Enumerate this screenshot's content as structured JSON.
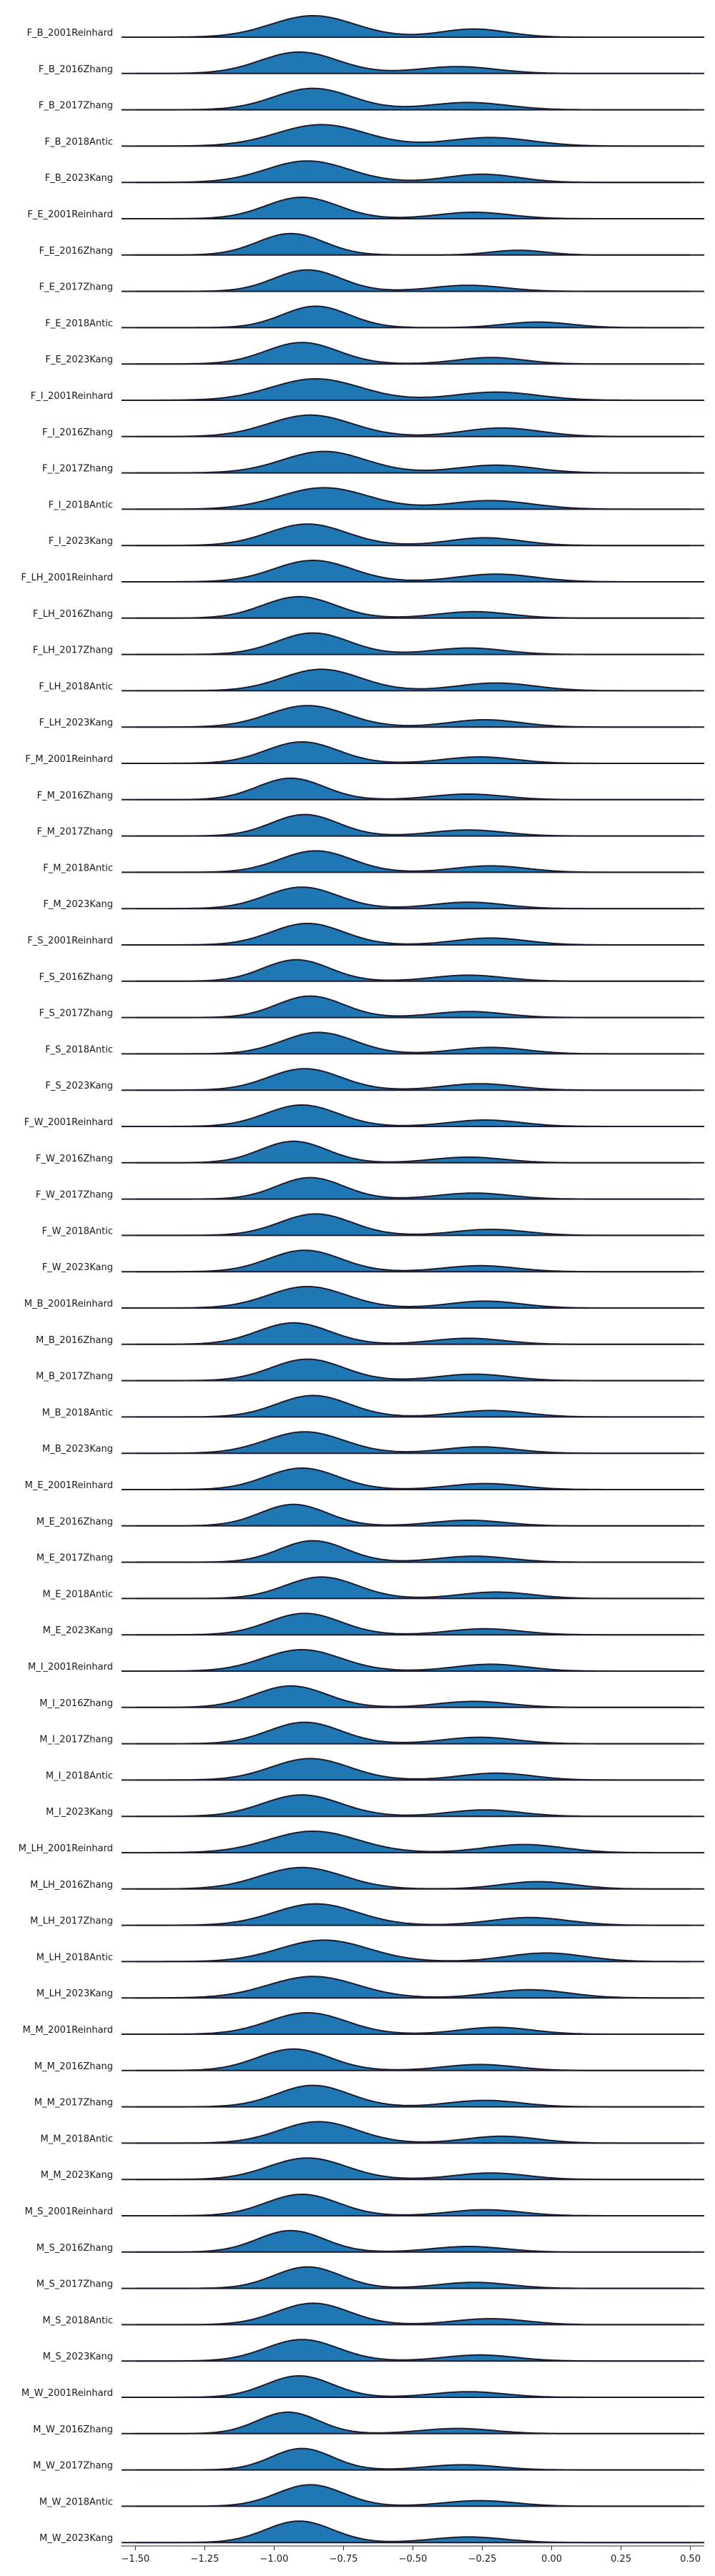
{
  "chart_data": {
    "type": "area",
    "subtype": "ridgeline",
    "title": "",
    "xlabel": "",
    "ylabel": "",
    "xlim": [
      -1.55,
      0.55
    ],
    "xticks": [
      -1.5,
      -1.25,
      -1.0,
      -0.75,
      -0.5,
      -0.25,
      0.0,
      0.25,
      0.5
    ],
    "xtick_labels": [
      "−1.50",
      "−1.25",
      "−1.00",
      "−0.75",
      "−0.50",
      "−0.25",
      "0.00",
      "0.25",
      "0.50"
    ],
    "grid": false,
    "legend": "none",
    "fill_color": "#1f77b4",
    "line_color": "#1c1c2e",
    "density_x_range": [
      -1.5,
      0.5
    ],
    "series": [
      {
        "name": "F_B_2001Reinhard",
        "peaks": [
          [
            -0.86,
            0.15,
            1.0
          ],
          [
            -0.28,
            0.12,
            0.38
          ]
        ]
      },
      {
        "name": "F_B_2016Zhang",
        "peaks": [
          [
            -0.91,
            0.14,
            1.0
          ],
          [
            -0.34,
            0.14,
            0.32
          ]
        ]
      },
      {
        "name": "F_B_2017Zhang",
        "peaks": [
          [
            -0.86,
            0.14,
            1.0
          ],
          [
            -0.3,
            0.14,
            0.34
          ]
        ]
      },
      {
        "name": "F_B_2018Antic",
        "peaks": [
          [
            -0.83,
            0.16,
            1.0
          ],
          [
            -0.22,
            0.15,
            0.4
          ]
        ]
      },
      {
        "name": "F_B_2023Kang",
        "peaks": [
          [
            -0.88,
            0.15,
            1.0
          ],
          [
            -0.25,
            0.13,
            0.38
          ]
        ]
      },
      {
        "name": "F_E_2001Reinhard",
        "peaks": [
          [
            -0.9,
            0.13,
            1.0
          ],
          [
            -0.28,
            0.13,
            0.3
          ]
        ]
      },
      {
        "name": "F_E_2016Zhang",
        "peaks": [
          [
            -0.94,
            0.12,
            1.0
          ],
          [
            -0.12,
            0.1,
            0.22
          ]
        ]
      },
      {
        "name": "F_E_2017Zhang",
        "peaks": [
          [
            -0.88,
            0.12,
            1.0
          ],
          [
            -0.3,
            0.13,
            0.28
          ]
        ]
      },
      {
        "name": "F_E_2018Antic",
        "peaks": [
          [
            -0.85,
            0.12,
            1.0
          ],
          [
            -0.05,
            0.12,
            0.26
          ]
        ]
      },
      {
        "name": "F_E_2023Kang",
        "peaks": [
          [
            -0.9,
            0.13,
            1.0
          ],
          [
            -0.22,
            0.12,
            0.3
          ]
        ]
      },
      {
        "name": "F_I_2001Reinhard",
        "peaks": [
          [
            -0.85,
            0.16,
            1.0
          ],
          [
            -0.2,
            0.15,
            0.38
          ]
        ]
      },
      {
        "name": "F_I_2016Zhang",
        "peaks": [
          [
            -0.87,
            0.15,
            1.0
          ],
          [
            -0.18,
            0.14,
            0.4
          ]
        ]
      },
      {
        "name": "F_I_2017Zhang",
        "peaks": [
          [
            -0.82,
            0.15,
            1.0
          ],
          [
            -0.2,
            0.14,
            0.36
          ]
        ]
      },
      {
        "name": "F_I_2018Antic",
        "peaks": [
          [
            -0.82,
            0.16,
            1.0
          ],
          [
            -0.22,
            0.15,
            0.4
          ]
        ]
      },
      {
        "name": "F_I_2023Kang",
        "peaks": [
          [
            -0.88,
            0.14,
            1.0
          ],
          [
            -0.24,
            0.13,
            0.36
          ]
        ]
      },
      {
        "name": "F_LH_2001Reinhard",
        "peaks": [
          [
            -0.86,
            0.14,
            1.0
          ],
          [
            -0.2,
            0.14,
            0.36
          ]
        ]
      },
      {
        "name": "F_LH_2016Zhang",
        "peaks": [
          [
            -0.91,
            0.13,
            1.0
          ],
          [
            -0.28,
            0.13,
            0.3
          ]
        ]
      },
      {
        "name": "F_LH_2017Zhang",
        "peaks": [
          [
            -0.86,
            0.13,
            1.0
          ],
          [
            -0.3,
            0.13,
            0.3
          ]
        ]
      },
      {
        "name": "F_LH_2018Antic",
        "peaks": [
          [
            -0.83,
            0.14,
            1.0
          ],
          [
            -0.2,
            0.14,
            0.36
          ]
        ]
      },
      {
        "name": "F_LH_2023Kang",
        "peaks": [
          [
            -0.88,
            0.14,
            1.0
          ],
          [
            -0.24,
            0.13,
            0.34
          ]
        ]
      },
      {
        "name": "F_M_2001Reinhard",
        "peaks": [
          [
            -0.9,
            0.13,
            1.0
          ],
          [
            -0.26,
            0.13,
            0.3
          ]
        ]
      },
      {
        "name": "F_M_2016Zhang",
        "peaks": [
          [
            -0.94,
            0.12,
            1.0
          ],
          [
            -0.3,
            0.13,
            0.26
          ]
        ]
      },
      {
        "name": "F_M_2017Zhang",
        "peaks": [
          [
            -0.89,
            0.12,
            1.0
          ],
          [
            -0.3,
            0.13,
            0.28
          ]
        ]
      },
      {
        "name": "F_M_2018Antic",
        "peaks": [
          [
            -0.85,
            0.13,
            1.0
          ],
          [
            -0.22,
            0.13,
            0.3
          ]
        ]
      },
      {
        "name": "F_M_2023Kang",
        "peaks": [
          [
            -0.9,
            0.13,
            1.0
          ],
          [
            -0.3,
            0.13,
            0.3
          ]
        ]
      },
      {
        "name": "F_S_2001Reinhard",
        "peaks": [
          [
            -0.88,
            0.13,
            1.0
          ],
          [
            -0.22,
            0.13,
            0.32
          ]
        ]
      },
      {
        "name": "F_S_2016Zhang",
        "peaks": [
          [
            -0.92,
            0.12,
            1.0
          ],
          [
            -0.3,
            0.13,
            0.28
          ]
        ]
      },
      {
        "name": "F_S_2017Zhang",
        "peaks": [
          [
            -0.87,
            0.12,
            1.0
          ],
          [
            -0.3,
            0.13,
            0.28
          ]
        ]
      },
      {
        "name": "F_S_2018Antic",
        "peaks": [
          [
            -0.84,
            0.13,
            1.0
          ],
          [
            -0.22,
            0.13,
            0.3
          ]
        ]
      },
      {
        "name": "F_S_2023Kang",
        "peaks": [
          [
            -0.89,
            0.13,
            1.0
          ],
          [
            -0.26,
            0.13,
            0.3
          ]
        ]
      },
      {
        "name": "F_W_2001Reinhard",
        "peaks": [
          [
            -0.9,
            0.13,
            1.0
          ],
          [
            -0.24,
            0.13,
            0.3
          ]
        ]
      },
      {
        "name": "F_W_2016Zhang",
        "peaks": [
          [
            -0.93,
            0.12,
            1.0
          ],
          [
            -0.3,
            0.13,
            0.26
          ]
        ]
      },
      {
        "name": "F_W_2017Zhang",
        "peaks": [
          [
            -0.87,
            0.12,
            1.0
          ],
          [
            -0.28,
            0.13,
            0.28
          ]
        ]
      },
      {
        "name": "F_W_2018Antic",
        "peaks": [
          [
            -0.85,
            0.13,
            1.0
          ],
          [
            -0.22,
            0.13,
            0.28
          ]
        ]
      },
      {
        "name": "F_W_2023Kang",
        "peaks": [
          [
            -0.89,
            0.13,
            1.0
          ],
          [
            -0.26,
            0.13,
            0.28
          ]
        ]
      },
      {
        "name": "M_B_2001Reinhard",
        "peaks": [
          [
            -0.88,
            0.14,
            1.0
          ],
          [
            -0.24,
            0.13,
            0.32
          ]
        ]
      },
      {
        "name": "M_B_2016Zhang",
        "peaks": [
          [
            -0.93,
            0.13,
            1.0
          ],
          [
            -0.3,
            0.13,
            0.28
          ]
        ]
      },
      {
        "name": "M_B_2017Zhang",
        "peaks": [
          [
            -0.88,
            0.13,
            1.0
          ],
          [
            -0.28,
            0.13,
            0.3
          ]
        ]
      },
      {
        "name": "M_B_2018Antic",
        "peaks": [
          [
            -0.86,
            0.13,
            1.0
          ],
          [
            -0.22,
            0.13,
            0.3
          ]
        ]
      },
      {
        "name": "M_B_2023Kang",
        "peaks": [
          [
            -0.89,
            0.14,
            1.0
          ],
          [
            -0.26,
            0.13,
            0.3
          ]
        ]
      },
      {
        "name": "M_E_2001Reinhard",
        "peaks": [
          [
            -0.9,
            0.13,
            1.0
          ],
          [
            -0.24,
            0.13,
            0.28
          ]
        ]
      },
      {
        "name": "M_E_2016Zhang",
        "peaks": [
          [
            -0.93,
            0.12,
            1.0
          ],
          [
            -0.3,
            0.13,
            0.26
          ]
        ]
      },
      {
        "name": "M_E_2017Zhang",
        "peaks": [
          [
            -0.86,
            0.12,
            1.0
          ],
          [
            -0.28,
            0.13,
            0.28
          ]
        ]
      },
      {
        "name": "M_E_2018Antic",
        "peaks": [
          [
            -0.83,
            0.13,
            1.0
          ],
          [
            -0.2,
            0.13,
            0.3
          ]
        ]
      },
      {
        "name": "M_E_2023Kang",
        "peaks": [
          [
            -0.89,
            0.13,
            1.0
          ],
          [
            -0.24,
            0.13,
            0.28
          ]
        ]
      },
      {
        "name": "M_I_2001Reinhard",
        "peaks": [
          [
            -0.9,
            0.14,
            1.0
          ],
          [
            -0.22,
            0.13,
            0.32
          ]
        ]
      },
      {
        "name": "M_I_2016Zhang",
        "peaks": [
          [
            -0.94,
            0.13,
            1.0
          ],
          [
            -0.28,
            0.13,
            0.28
          ]
        ]
      },
      {
        "name": "M_I_2017Zhang",
        "peaks": [
          [
            -0.89,
            0.13,
            1.0
          ],
          [
            -0.26,
            0.13,
            0.3
          ]
        ]
      },
      {
        "name": "M_I_2018Antic",
        "peaks": [
          [
            -0.87,
            0.14,
            1.0
          ],
          [
            -0.2,
            0.13,
            0.32
          ]
        ]
      },
      {
        "name": "M_I_2023Kang",
        "peaks": [
          [
            -0.9,
            0.14,
            1.0
          ],
          [
            -0.24,
            0.13,
            0.3
          ]
        ]
      },
      {
        "name": "M_LH_2001Reinhard",
        "peaks": [
          [
            -0.86,
            0.16,
            1.0
          ],
          [
            -0.1,
            0.14,
            0.38
          ]
        ]
      },
      {
        "name": "M_LH_2016Zhang",
        "peaks": [
          [
            -0.9,
            0.15,
            1.0
          ],
          [
            -0.05,
            0.13,
            0.34
          ]
        ]
      },
      {
        "name": "M_LH_2017Zhang",
        "peaks": [
          [
            -0.85,
            0.15,
            1.0
          ],
          [
            -0.08,
            0.14,
            0.36
          ]
        ]
      },
      {
        "name": "M_LH_2018Antic",
        "peaks": [
          [
            -0.82,
            0.16,
            1.0
          ],
          [
            -0.02,
            0.14,
            0.4
          ]
        ]
      },
      {
        "name": "M_LH_2023Kang",
        "peaks": [
          [
            -0.86,
            0.16,
            1.0
          ],
          [
            -0.08,
            0.14,
            0.38
          ]
        ]
      },
      {
        "name": "M_M_2001Reinhard",
        "peaks": [
          [
            -0.88,
            0.14,
            1.0
          ],
          [
            -0.2,
            0.13,
            0.32
          ]
        ]
      },
      {
        "name": "M_M_2016Zhang",
        "peaks": [
          [
            -0.93,
            0.13,
            1.0
          ],
          [
            -0.26,
            0.13,
            0.28
          ]
        ]
      },
      {
        "name": "M_M_2017Zhang",
        "peaks": [
          [
            -0.86,
            0.13,
            1.0
          ],
          [
            -0.24,
            0.13,
            0.3
          ]
        ]
      },
      {
        "name": "M_M_2018Antic",
        "peaks": [
          [
            -0.84,
            0.14,
            1.0
          ],
          [
            -0.18,
            0.13,
            0.32
          ]
        ]
      },
      {
        "name": "M_M_2023Kang",
        "peaks": [
          [
            -0.88,
            0.14,
            1.0
          ],
          [
            -0.22,
            0.13,
            0.3
          ]
        ]
      },
      {
        "name": "M_S_2001Reinhard",
        "peaks": [
          [
            -0.9,
            0.13,
            1.0
          ],
          [
            -0.24,
            0.13,
            0.28
          ]
        ]
      },
      {
        "name": "M_S_2016Zhang",
        "peaks": [
          [
            -0.94,
            0.12,
            1.0
          ],
          [
            -0.3,
            0.13,
            0.26
          ]
        ]
      },
      {
        "name": "M_S_2017Zhang",
        "peaks": [
          [
            -0.88,
            0.12,
            1.0
          ],
          [
            -0.28,
            0.13,
            0.28
          ]
        ]
      },
      {
        "name": "M_S_2018Antic",
        "peaks": [
          [
            -0.86,
            0.13,
            1.0
          ],
          [
            -0.22,
            0.13,
            0.28
          ]
        ]
      },
      {
        "name": "M_S_2023Kang",
        "peaks": [
          [
            -0.9,
            0.13,
            1.0
          ],
          [
            -0.26,
            0.13,
            0.28
          ]
        ]
      },
      {
        "name": "M_W_2001Reinhard",
        "peaks": [
          [
            -0.91,
            0.12,
            1.0
          ],
          [
            -0.3,
            0.13,
            0.26
          ]
        ]
      },
      {
        "name": "M_W_2016Zhang",
        "peaks": [
          [
            -0.95,
            0.11,
            1.0
          ],
          [
            -0.34,
            0.13,
            0.24
          ]
        ]
      },
      {
        "name": "M_W_2017Zhang",
        "peaks": [
          [
            -0.9,
            0.11,
            1.0
          ],
          [
            -0.32,
            0.13,
            0.24
          ]
        ]
      },
      {
        "name": "M_W_2018Antic",
        "peaks": [
          [
            -0.87,
            0.12,
            1.0
          ],
          [
            -0.26,
            0.13,
            0.26
          ]
        ]
      },
      {
        "name": "M_W_2023Kang",
        "peaks": [
          [
            -0.91,
            0.12,
            1.0
          ],
          [
            -0.3,
            0.13,
            0.26
          ]
        ]
      }
    ]
  }
}
